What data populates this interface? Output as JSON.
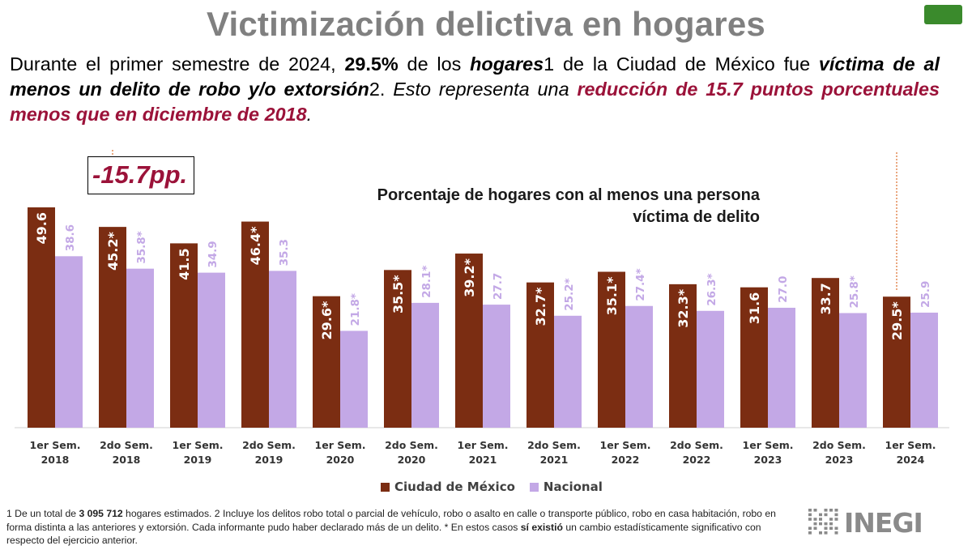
{
  "slide": {
    "title": "Victimización delictiva en hogares",
    "intro": {
      "p1": "Durante el primer semestre de 2024, ",
      "p2": "29.5%",
      "p3": " de los ",
      "p4": "hogares",
      "p5": "1 de la Ciudad de México fue ",
      "p6": "víctima de al menos un delito de robo y/o extorsión",
      "p7": "2. ",
      "p8": "Esto representa una ",
      "p9": "reducción de 15.7 puntos porcentuales menos que en diciembre de 2018",
      "p10": "."
    },
    "callout": "-15.7pp.",
    "footnote": {
      "f1": "1 De un total de ",
      "f2": "3 095 712",
      "f3": " hogares estimados. 2 Incluye los delitos robo total o parcial de vehículo, robo o asalto en calle o transporte público, robo en casa habitación, robo en forma distinta a las    anteriores y extorsión. Cada informante pudo haber declarado más de un delito. * En estos casos ",
      "f4": "sí existió",
      "f5": " un cambio estadísticamente significativo con respecto del ejercicio anterior."
    },
    "logo_text": "INEGI",
    "colors": {
      "title": "#808080",
      "highlight": "#9b1239",
      "cdmx": "#7b2d12",
      "nacional": "#c3a8e6",
      "accent_box": "#3a8a2c"
    }
  },
  "chart_data": {
    "type": "bar",
    "title": "Porcentaje de hogares con al menos una persona víctima de delito",
    "categories": [
      [
        "1er Sem.",
        "2018"
      ],
      [
        "2do Sem.",
        "2018"
      ],
      [
        "1er Sem.",
        "2019"
      ],
      [
        "2do Sem.",
        "2019"
      ],
      [
        "1er Sem.",
        "2020"
      ],
      [
        "2do Sem.",
        "2020"
      ],
      [
        "1er Sem.",
        "2021"
      ],
      [
        "2do Sem.",
        "2021"
      ],
      [
        "1er Sem.",
        "2022"
      ],
      [
        "2do Sem.",
        "2022"
      ],
      [
        "1er Sem.",
        "2023"
      ],
      [
        "2do Sem.",
        "2023"
      ],
      [
        "1er Sem.",
        "2024"
      ]
    ],
    "series": [
      {
        "name": "Ciudad de México",
        "values": [
          49.6,
          45.2,
          41.5,
          46.4,
          29.6,
          35.5,
          39.2,
          32.7,
          35.1,
          32.3,
          31.6,
          33.7,
          29.5
        ],
        "labels": [
          "49.6",
          "45.2*",
          "41.5",
          "46.4*",
          "29.6*",
          "35.5*",
          "39.2*",
          "32.7*",
          "35.1*",
          "32.3*",
          "31.6",
          "33.7",
          "29.5*"
        ]
      },
      {
        "name": "Nacional",
        "values": [
          38.6,
          35.8,
          34.9,
          35.3,
          21.8,
          28.1,
          27.7,
          25.2,
          27.4,
          26.3,
          27.0,
          25.8,
          25.9
        ],
        "labels": [
          "38.6",
          "35.8*",
          "34.9",
          "35.3",
          "21.8*",
          "28.1*",
          "27.7",
          "25.2*",
          "27.4*",
          "26.3*",
          "27.0",
          "25.8*",
          "25.9"
        ]
      }
    ],
    "ylim": [
      0,
      55
    ],
    "grid": false,
    "legend": "bottom-center"
  }
}
